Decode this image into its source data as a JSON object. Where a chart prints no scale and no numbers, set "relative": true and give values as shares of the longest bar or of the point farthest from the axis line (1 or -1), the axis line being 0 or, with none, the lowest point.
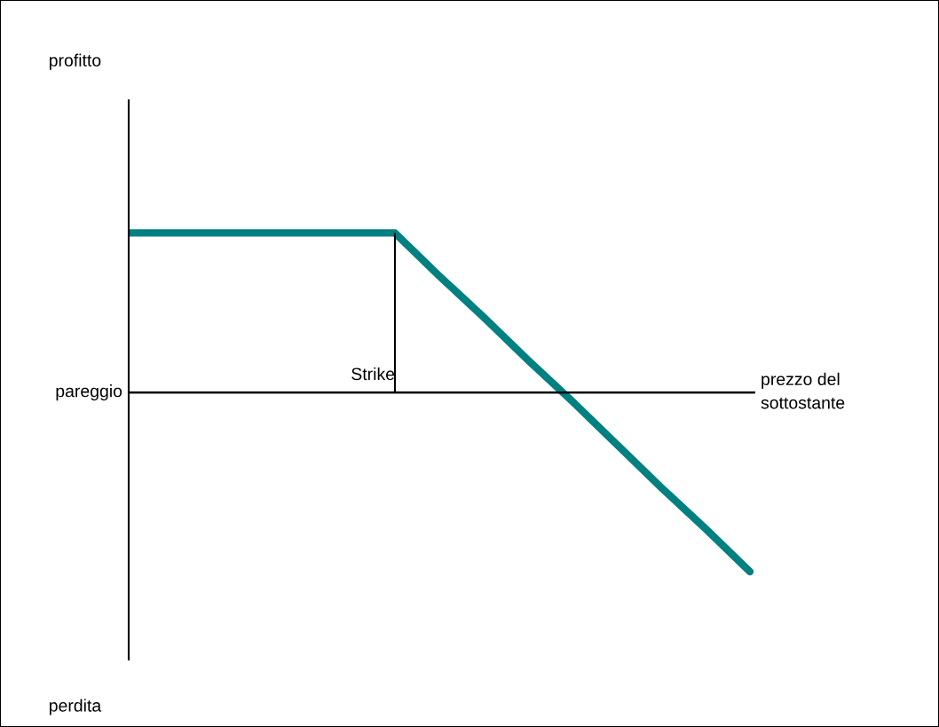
{
  "chart_data": {
    "type": "line",
    "relative": true,
    "categories": [
      null,
      null,
      null,
      null,
      null,
      null,
      null,
      null,
      null,
      null,
      null,
      null,
      null,
      null,
      null
    ],
    "series": [
      {
        "color": "#008080",
        "values": [
          0.89,
          0.89,
          0.89,
          0.89,
          0.89,
          0.89,
          0.89,
          0.65,
          0.42,
          0.18,
          -0.05,
          -0.29,
          -0.53,
          -0.76,
          -1
        ]
      }
    ],
    "xlabel": "prezzo del\nsottostante",
    "annotations": [
      "profitto",
      "perdita",
      "Strike"
    ],
    "ref_lines": [
      {
        "axis": "y",
        "value": 0,
        "label": "pareggio"
      }
    ],
    "legend": false,
    "marker": "none",
    "line_style": "solid"
  }
}
